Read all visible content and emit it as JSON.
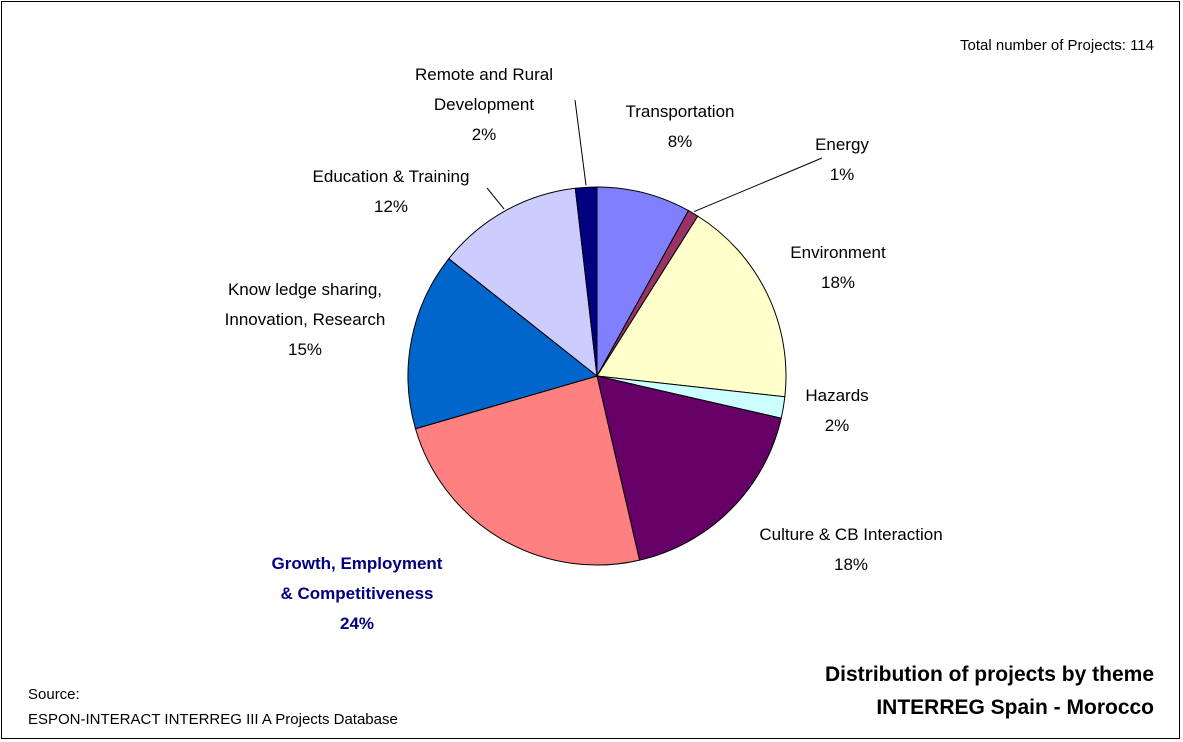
{
  "chart_data": {
    "type": "pie",
    "title": "Distribution of projects by theme",
    "subtitle": "INTERREG Spain - Morocco",
    "total_label": "Total number of Projects: 114",
    "source_label": "Source:",
    "source": "ESPON-INTERACT INTERREG III A Projects Database",
    "slices": [
      {
        "label_lines": [
          "Transportation"
        ],
        "value_label": "8%",
        "value": 7.9,
        "color": "#8080FF"
      },
      {
        "label_lines": [
          "Energy"
        ],
        "value_label": "1%",
        "value": 0.9,
        "color": "#993366"
      },
      {
        "label_lines": [
          "Environment"
        ],
        "value_label": "18%",
        "value": 17.5,
        "color": "#FFFFCC"
      },
      {
        "label_lines": [
          "Hazards"
        ],
        "value_label": "2%",
        "value": 1.8,
        "color": "#CCFFFF"
      },
      {
        "label_lines": [
          "Culture & CB Interaction"
        ],
        "value_label": "18%",
        "value": 17.5,
        "color": "#660066"
      },
      {
        "label_lines": [
          "Growth, Employment",
          "& Competitiveness"
        ],
        "value_label": "24%",
        "value": 23.7,
        "color": "#FF8080",
        "label_color": "#000080",
        "emphasis": true
      },
      {
        "label_lines": [
          "Know ledge sharing,",
          "Innovation, Research"
        ],
        "value_label": "15%",
        "value": 14.9,
        "color": "#0066CC"
      },
      {
        "label_lines": [
          "Education & Training"
        ],
        "value_label": "12%",
        "value": 12.3,
        "color": "#CCCCFF"
      },
      {
        "label_lines": [
          "Remote and Rural",
          "Development"
        ],
        "value_label": "2%",
        "value": 1.8,
        "color": "#000080"
      }
    ]
  }
}
